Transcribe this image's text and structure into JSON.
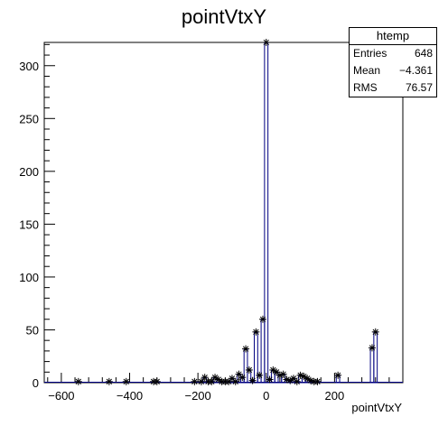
{
  "chart_data": {
    "type": "bar",
    "title": "pointVtxY",
    "xlabel": "pointVtxY",
    "ylabel": "",
    "xlim": [
      -650,
      400
    ],
    "ylim": [
      0,
      322
    ],
    "xticks": [
      -600,
      -400,
      -200,
      0,
      200
    ],
    "yticks": [
      0,
      50,
      100,
      150,
      200,
      250,
      300
    ],
    "colors": {
      "histogram": "#000080",
      "markers": "#000000",
      "frame": "#000000"
    },
    "bins": [
      {
        "x": -560,
        "y": 0
      },
      {
        "x": -550,
        "y": 1
      },
      {
        "x": -460,
        "y": 1
      },
      {
        "x": -410,
        "y": 1
      },
      {
        "x": -330,
        "y": 1
      },
      {
        "x": -320,
        "y": 1
      },
      {
        "x": -210,
        "y": 1
      },
      {
        "x": -190,
        "y": 1
      },
      {
        "x": -180,
        "y": 5
      },
      {
        "x": -170,
        "y": 1
      },
      {
        "x": -160,
        "y": 1
      },
      {
        "x": -150,
        "y": 5
      },
      {
        "x": -140,
        "y": 3
      },
      {
        "x": -130,
        "y": 1
      },
      {
        "x": -120,
        "y": 1
      },
      {
        "x": -110,
        "y": 1
      },
      {
        "x": -100,
        "y": 4
      },
      {
        "x": -90,
        "y": 1
      },
      {
        "x": -80,
        "y": 8
      },
      {
        "x": -70,
        "y": 5
      },
      {
        "x": -60,
        "y": 32
      },
      {
        "x": -50,
        "y": 12
      },
      {
        "x": -40,
        "y": 2
      },
      {
        "x": -30,
        "y": 48
      },
      {
        "x": -20,
        "y": 7
      },
      {
        "x": -10,
        "y": 60
      },
      {
        "x": 0,
        "y": 322
      },
      {
        "x": 10,
        "y": 3
      },
      {
        "x": 20,
        "y": 12
      },
      {
        "x": 30,
        "y": 10
      },
      {
        "x": 40,
        "y": 7
      },
      {
        "x": 50,
        "y": 8
      },
      {
        "x": 60,
        "y": 3
      },
      {
        "x": 70,
        "y": 2
      },
      {
        "x": 80,
        "y": 4
      },
      {
        "x": 90,
        "y": 1
      },
      {
        "x": 100,
        "y": 7
      },
      {
        "x": 110,
        "y": 6
      },
      {
        "x": 120,
        "y": 4
      },
      {
        "x": 130,
        "y": 2
      },
      {
        "x": 140,
        "y": 1
      },
      {
        "x": 150,
        "y": 1
      },
      {
        "x": 210,
        "y": 7
      },
      {
        "x": 310,
        "y": 33
      },
      {
        "x": 320,
        "y": 48
      },
      {
        "x": 330,
        "y": 0
      }
    ]
  },
  "stats": {
    "title": "htemp",
    "rows": [
      {
        "label": "Entries",
        "value": "648"
      },
      {
        "label": "Mean",
        "value": "−4.361"
      },
      {
        "label": "RMS",
        "value": "76.57"
      }
    ]
  }
}
